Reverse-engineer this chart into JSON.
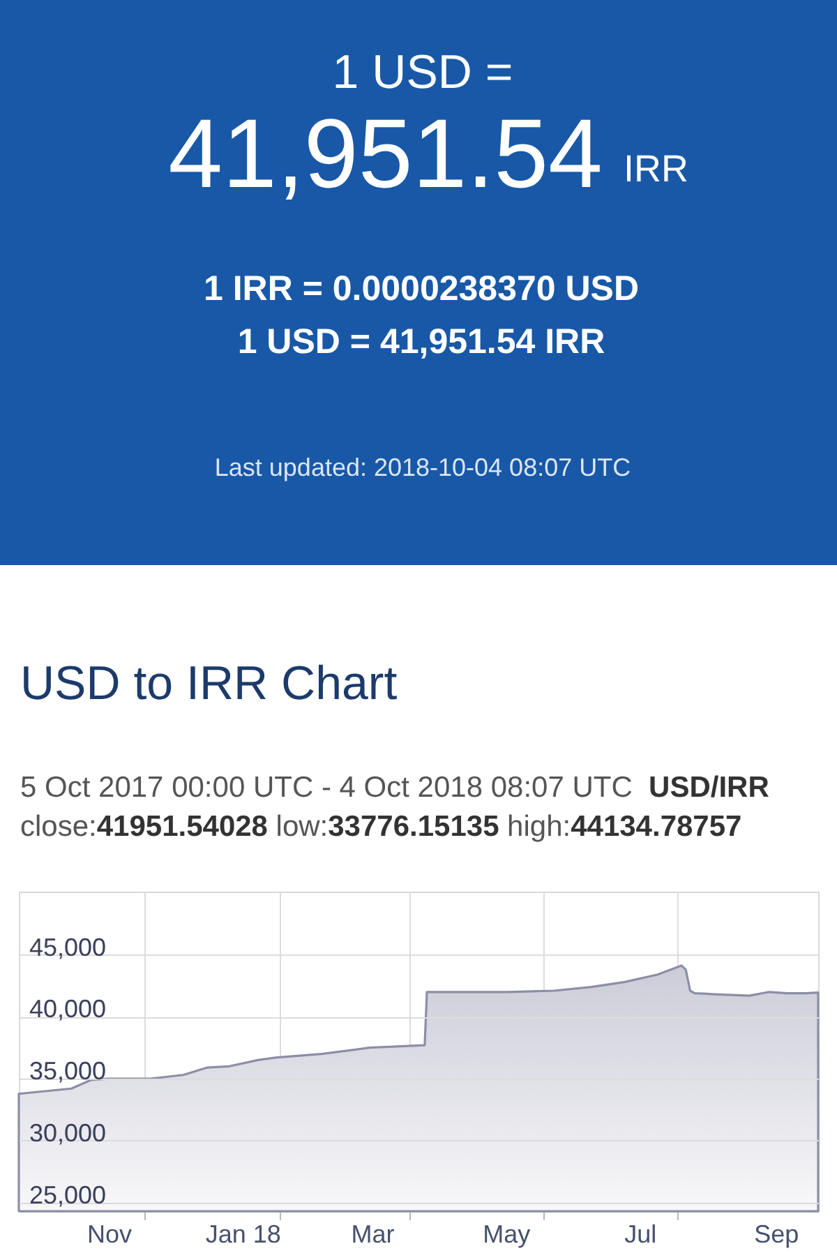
{
  "chart_data": [
    {
      "type": "other",
      "annotations": [
        "1 USD =",
        "41,951.54",
        "IRR",
        "1 IRR = 0.0000238370 USD",
        "1 USD = 41,951.54 IRR",
        "Last updated: 2018-10-04 08:07 UTC"
      ]
    },
    {
      "type": "area",
      "title": "USD to IRR Chart",
      "subtitle": "5 Oct 2017 00:00 UTC - 4 Oct 2018 08:07 UTC  USD/IRR",
      "annotations": [
        "close:41951.54028 low:33776.15135 high:44134.78757"
      ],
      "x": [
        "2017-10-05",
        "2017-10-29",
        "2017-11-07",
        "2017-11-15",
        "2017-12-04",
        "2017-12-19",
        "2017-12-30",
        "2018-01-09",
        "2018-01-22",
        "2018-01-30",
        "2018-02-20",
        "2018-03-14",
        "2018-04-08",
        "2018-04-09",
        "2018-05-16",
        "2018-06-06",
        "2018-06-23",
        "2018-07-08",
        "2018-07-23",
        "2018-08-03",
        "2018-08-05",
        "2018-08-07",
        "2018-08-09",
        "2018-08-20",
        "2018-09-03",
        "2018-09-12",
        "2018-09-20",
        "2018-09-29",
        "2018-10-04T08:07"
      ],
      "values": [
        33776.15135,
        34200,
        34900,
        35000,
        35000,
        35300,
        35900,
        36000,
        36500,
        36700,
        37000,
        37500,
        37700,
        42000,
        42000,
        42100,
        42400,
        42800,
        43400,
        44134.78757,
        43800,
        42100,
        41900,
        41800,
        41700,
        42000,
        41900,
        41900,
        41951.54028
      ],
      "color": "#8b8ea6",
      "xlim": [
        "2017-10-05",
        "2018-10-04T08:07"
      ],
      "ylim": [
        24300,
        50100
      ],
      "xticks": [
        {
          "value": "2017-11-15",
          "label": "Nov"
        },
        {
          "value": "2017-12-01",
          "label": null
        },
        {
          "value": "2018-01-15",
          "label": "Jan 18"
        },
        {
          "value": "2018-02-01",
          "label": null
        },
        {
          "value": "2018-03-15",
          "label": "Mar"
        },
        {
          "value": "2018-04-01",
          "label": null
        },
        {
          "value": "2018-05-15",
          "label": "May"
        },
        {
          "value": "2018-06-01",
          "label": null
        },
        {
          "value": "2018-07-15",
          "label": "Jul"
        },
        {
          "value": "2018-08-01",
          "label": null
        },
        {
          "value": "2018-09-15",
          "label": "Sep"
        }
      ],
      "yticks": [
        {
          "value": 25000,
          "label": "25,000"
        },
        {
          "value": 30000,
          "label": "30,000"
        },
        {
          "value": 35000,
          "label": "35,000"
        },
        {
          "value": 40000,
          "label": "40,000"
        },
        {
          "value": 45000,
          "label": "45,000"
        }
      ],
      "grid": true
    }
  ]
}
